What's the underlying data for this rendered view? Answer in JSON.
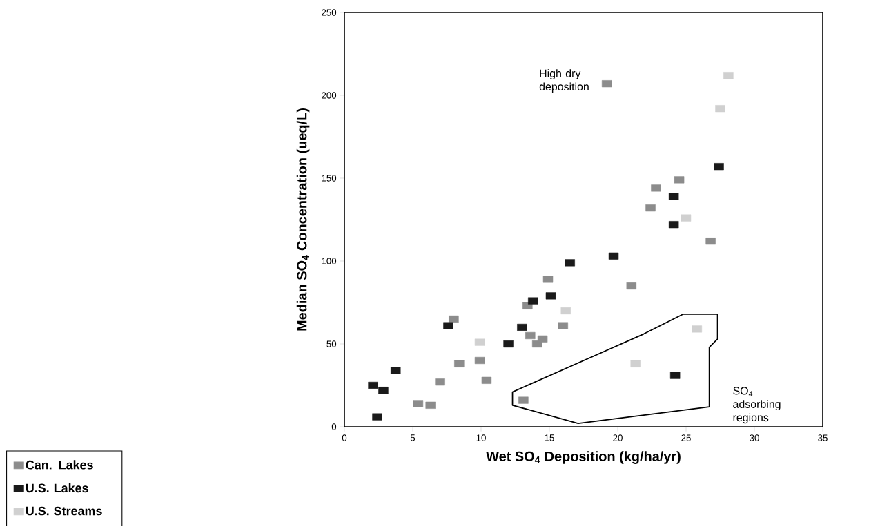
{
  "chart_data": {
    "type": "scatter",
    "xlabel": "Wet SO$_{4}$ Deposition (kg/ha/yr)",
    "ylabel": "Median SO$_{4}$ Concentration (ueq/L)",
    "xlim": [
      0,
      35
    ],
    "ylim": [
      0,
      250
    ],
    "xticks": [
      0,
      5,
      10,
      15,
      20,
      25,
      30,
      35
    ],
    "yticks": [
      0,
      50,
      100,
      150,
      200,
      250
    ],
    "marker": "square",
    "legend": "bottom left",
    "grid": false,
    "series": [
      {
        "name": "Can. Lakes",
        "color": "#8c8c8c",
        "x": [
          5.4,
          6.3,
          7.0,
          8.0,
          8.4,
          9.9,
          10.4,
          13.1,
          13.4,
          13.6,
          14.1,
          14.5,
          14.9,
          16.0,
          19.2,
          21.0,
          22.4,
          22.8,
          24.5,
          26.8
        ],
        "values": [
          14,
          13,
          27,
          65,
          38,
          40,
          28,
          16,
          73,
          55,
          50,
          53,
          89,
          61,
          207,
          85,
          132,
          144,
          149,
          112
        ]
      },
      {
        "name": "U.S. Lakes",
        "color": "#1a1a1a",
        "x": [
          2.1,
          2.4,
          2.85,
          3.75,
          7.6,
          12.0,
          13.0,
          13.8,
          15.1,
          16.5,
          19.7,
          24.1,
          24.1,
          24.2,
          27.4
        ],
        "values": [
          25,
          6,
          22,
          34,
          61,
          50,
          60,
          76,
          79,
          99,
          103,
          139,
          122,
          31,
          157
        ]
      },
      {
        "name": "U.S. Streams",
        "color": "#d0d0d0",
        "x": [
          9.9,
          16.2,
          21.3,
          25.0,
          25.8,
          27.5,
          28.1
        ],
        "values": [
          51,
          70,
          38,
          126,
          59,
          192,
          212
        ]
      },
      {
        "type": "line",
        "color": "#000000",
        "marker": "none",
        "x": [
          12.3,
          12.3,
          17.1,
          26.7,
          26.7,
          27.3,
          27.3
        ],
        "values": [
          21,
          13,
          2,
          12,
          48,
          53,
          68
        ]
      },
      {
        "type": "line",
        "color": "#000000",
        "marker": "none",
        "x": [
          12.3,
          21.9,
          24.8,
          27.3
        ],
        "values": [
          21,
          56,
          68,
          68
        ]
      }
    ],
    "annotations": [
      {
        "text": "High dry deposition",
        "x": 19.2,
        "y": 207
      },
      "SO$_{4}$ adsorbing regions"
    ]
  }
}
